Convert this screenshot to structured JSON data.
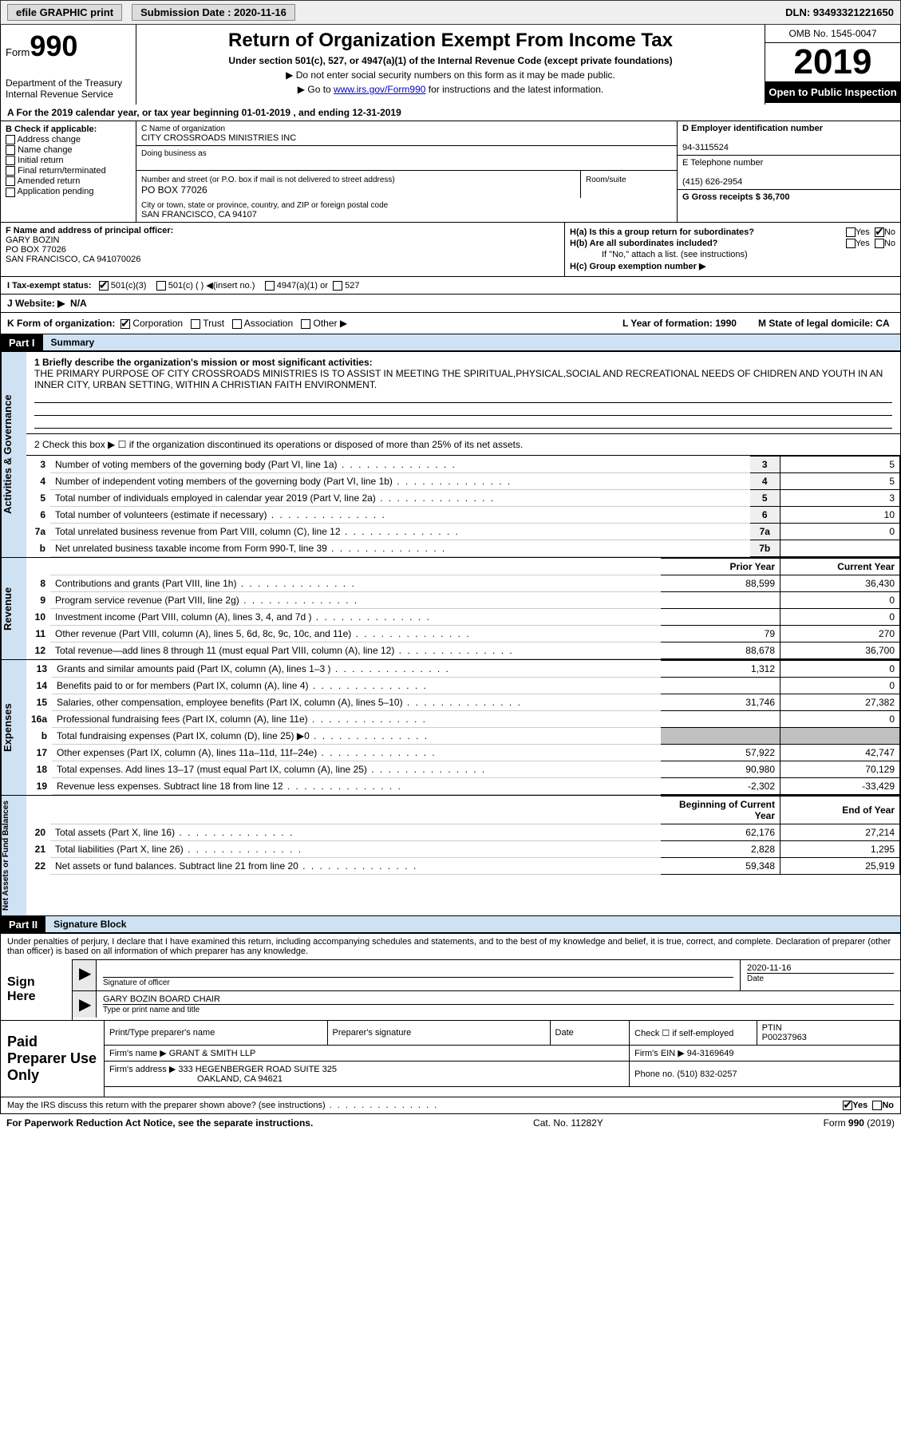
{
  "topbar": {
    "efile_label": "efile GRAPHIC print",
    "submission_label": "Submission Date : 2020-11-16",
    "dln_label": "DLN: 93493321221650"
  },
  "header": {
    "form_prefix": "Form",
    "form_number": "990",
    "dept": "Department of the Treasury",
    "irs": "Internal Revenue Service",
    "title": "Return of Organization Exempt From Income Tax",
    "subtitle": "Under section 501(c), 527, or 4947(a)(1) of the Internal Revenue Code (except private foundations)",
    "note1": "▶ Do not enter social security numbers on this form as it may be made public.",
    "note2_prefix": "▶ Go to ",
    "note2_link": "www.irs.gov/Form990",
    "note2_suffix": " for instructions and the latest information.",
    "omb": "OMB No. 1545-0047",
    "year": "2019",
    "open": "Open to Public Inspection"
  },
  "line_a": "A For the 2019 calendar year, or tax year beginning 01-01-2019    , and ending 12-31-2019",
  "col_b": {
    "label": "B Check if applicable:",
    "opts": [
      "Address change",
      "Name change",
      "Initial return",
      "Final return/terminated",
      "Amended return",
      "Application pending"
    ]
  },
  "col_c": {
    "name_label": "C Name of organization",
    "name": "CITY CROSSROADS MINISTRIES INC",
    "dba_label": "Doing business as",
    "addr_label": "Number and street (or P.O. box if mail is not delivered to street address)",
    "room_label": "Room/suite",
    "addr": "PO BOX 77026",
    "city_label": "City or town, state or province, country, and ZIP or foreign postal code",
    "city": "SAN FRANCISCO, CA  94107"
  },
  "col_de": {
    "ein_label": "D Employer identification number",
    "ein": "94-3115524",
    "tel_label": "E Telephone number",
    "tel": "(415) 626-2954",
    "gross_label": "G Gross receipts $ 36,700"
  },
  "section_f": {
    "label": "F  Name and address of principal officer:",
    "name": "GARY BOZIN",
    "addr1": "PO BOX 77026",
    "addr2": "SAN FRANCISCO, CA  941070026"
  },
  "section_h": {
    "ha": "H(a)  Is this a group return for subordinates?",
    "hb": "H(b)  Are all subordinates included?",
    "hb_note": "If \"No,\" attach a list. (see instructions)",
    "hc": "H(c)  Group exemption number ▶",
    "yes": "Yes",
    "no": "No"
  },
  "tax_status": {
    "label": "I   Tax-exempt status:",
    "c3": "501(c)(3)",
    "c": "501(c) (  ) ◀(insert no.)",
    "a1": "4947(a)(1) or",
    "s527": "527"
  },
  "website": {
    "label": "J   Website: ▶",
    "value": "N/A"
  },
  "kform": {
    "k": "K Form of organization:",
    "corp": "Corporation",
    "trust": "Trust",
    "assoc": "Association",
    "other": "Other ▶",
    "l": "L Year of formation: 1990",
    "m": "M State of legal domicile: CA"
  },
  "part1": {
    "hdr": "Part I",
    "title": "Summary"
  },
  "summary": {
    "q1": "1  Briefly describe the organization's mission or most significant activities:",
    "mission": "THE PRIMARY PURPOSE OF CITY CROSSROADS MINISTRIES IS TO ASSIST IN MEETING THE SPIRITUAL,PHYSICAL,SOCIAL AND RECREATIONAL NEEDS OF CHIDREN AND YOUTH IN AN INNER CITY, URBAN SETTING, WITHIN A CHRISTIAN FAITH ENVIRONMENT.",
    "q2": "2    Check this box ▶ ☐  if the organization discontinued its operations or disposed of more than 25% of its net assets."
  },
  "gov_rows": [
    {
      "n": "3",
      "t": "Number of voting members of the governing body (Part VI, line 1a)",
      "box": "3",
      "v": "5"
    },
    {
      "n": "4",
      "t": "Number of independent voting members of the governing body (Part VI, line 1b)",
      "box": "4",
      "v": "5"
    },
    {
      "n": "5",
      "t": "Total number of individuals employed in calendar year 2019 (Part V, line 2a)",
      "box": "5",
      "v": "3"
    },
    {
      "n": "6",
      "t": "Total number of volunteers (estimate if necessary)",
      "box": "6",
      "v": "10"
    },
    {
      "n": "7a",
      "t": "Total unrelated business revenue from Part VIII, column (C), line 12",
      "box": "7a",
      "v": "0"
    },
    {
      "n": "b",
      "t": "Net unrelated business taxable income from Form 990-T, line 39",
      "box": "7b",
      "v": ""
    }
  ],
  "twocol_hdr": {
    "prior": "Prior Year",
    "current": "Current Year"
  },
  "revenue_rows": [
    {
      "n": "8",
      "t": "Contributions and grants (Part VIII, line 1h)",
      "p": "88,599",
      "c": "36,430"
    },
    {
      "n": "9",
      "t": "Program service revenue (Part VIII, line 2g)",
      "p": "",
      "c": "0"
    },
    {
      "n": "10",
      "t": "Investment income (Part VIII, column (A), lines 3, 4, and 7d )",
      "p": "",
      "c": "0"
    },
    {
      "n": "11",
      "t": "Other revenue (Part VIII, column (A), lines 5, 6d, 8c, 9c, 10c, and 11e)",
      "p": "79",
      "c": "270"
    },
    {
      "n": "12",
      "t": "Total revenue—add lines 8 through 11 (must equal Part VIII, column (A), line 12)",
      "p": "88,678",
      "c": "36,700"
    }
  ],
  "expense_rows": [
    {
      "n": "13",
      "t": "Grants and similar amounts paid (Part IX, column (A), lines 1–3 )",
      "p": "1,312",
      "c": "0"
    },
    {
      "n": "14",
      "t": "Benefits paid to or for members (Part IX, column (A), line 4)",
      "p": "",
      "c": "0"
    },
    {
      "n": "15",
      "t": "Salaries, other compensation, employee benefits (Part IX, column (A), lines 5–10)",
      "p": "31,746",
      "c": "27,382"
    },
    {
      "n": "16a",
      "t": "Professional fundraising fees (Part IX, column (A), line 11e)",
      "p": "",
      "c": "0"
    },
    {
      "n": "b",
      "t": "Total fundraising expenses (Part IX, column (D), line 25) ▶0",
      "p": "gray",
      "c": "gray"
    },
    {
      "n": "17",
      "t": "Other expenses (Part IX, column (A), lines 11a–11d, 11f–24e)",
      "p": "57,922",
      "c": "42,747"
    },
    {
      "n": "18",
      "t": "Total expenses. Add lines 13–17 (must equal Part IX, column (A), line 25)",
      "p": "90,980",
      "c": "70,129"
    },
    {
      "n": "19",
      "t": "Revenue less expenses. Subtract line 18 from line 12",
      "p": "-2,302",
      "c": "-33,429"
    }
  ],
  "netassets_hdr": {
    "begin": "Beginning of Current Year",
    "end": "End of Year"
  },
  "netassets_rows": [
    {
      "n": "20",
      "t": "Total assets (Part X, line 16)",
      "p": "62,176",
      "c": "27,214"
    },
    {
      "n": "21",
      "t": "Total liabilities (Part X, line 26)",
      "p": "2,828",
      "c": "1,295"
    },
    {
      "n": "22",
      "t": "Net assets or fund balances. Subtract line 21 from line 20",
      "p": "59,348",
      "c": "25,919"
    }
  ],
  "part2": {
    "hdr": "Part II",
    "title": "Signature Block"
  },
  "penalty": "Under penalties of perjury, I declare that I have examined this return, including accompanying schedules and statements, and to the best of my knowledge and belief, it is true, correct, and complete. Declaration of preparer (other than officer) is based on all information of which preparer has any knowledge.",
  "sign": {
    "here": "Sign Here",
    "sig_label": "Signature of officer",
    "date_label": "Date",
    "date": "2020-11-16",
    "name": "GARY BOZIN  BOARD CHAIR",
    "name_label": "Type or print name and title"
  },
  "preparer": {
    "label": "Paid Preparer Use Only",
    "print_label": "Print/Type preparer's name",
    "sig_label": "Preparer's signature",
    "date_label": "Date",
    "check_label": "Check ☐ if self-employed",
    "ptin_label": "PTIN",
    "ptin": "P00237963",
    "firm_name_label": "Firm's name    ▶",
    "firm_name": "GRANT & SMITH LLP",
    "firm_ein_label": "Firm's EIN ▶",
    "firm_ein": "94-3169649",
    "firm_addr_label": "Firm's address ▶",
    "firm_addr1": "333 HEGENBERGER ROAD SUITE 325",
    "firm_addr2": "OAKLAND, CA  94621",
    "phone_label": "Phone no.",
    "phone": "(510) 832-0257"
  },
  "discuss": "May the IRS discuss this return with the preparer shown above? (see instructions)",
  "footer": {
    "left": "For Paperwork Reduction Act Notice, see the separate instructions.",
    "mid": "Cat. No. 11282Y",
    "right": "Form 990 (2019)"
  },
  "side_labels": {
    "gov": "Activities & Governance",
    "rev": "Revenue",
    "exp": "Expenses",
    "net": "Net Assets or Fund Balances"
  }
}
